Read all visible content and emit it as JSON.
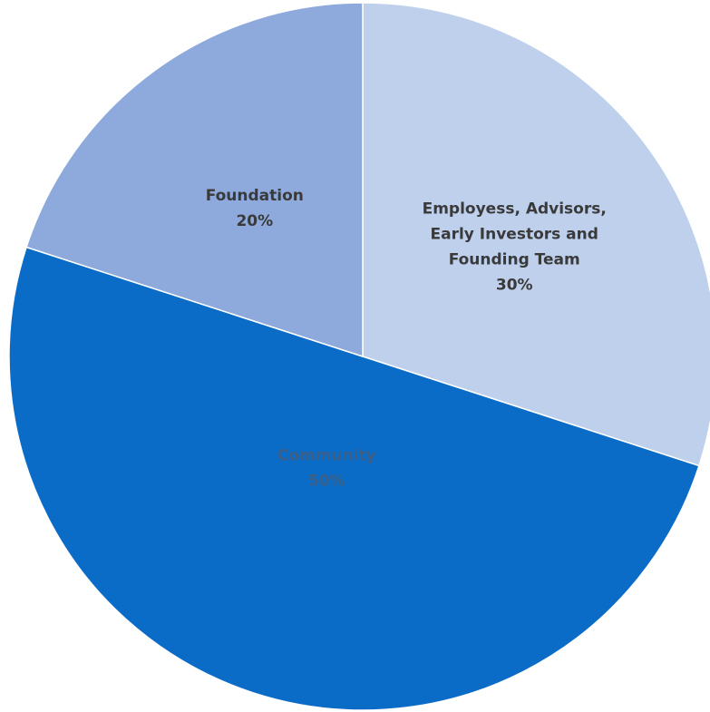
{
  "chart_data": {
    "type": "pie",
    "slices": [
      {
        "label_lines": [
          "Employess, Advisors,",
          "Early Investors and",
          "Founding Team"
        ],
        "value": 30,
        "value_label": "30%",
        "color": "#bed0ec",
        "label_color": "#3a3a3a"
      },
      {
        "label_lines": [
          "Community"
        ],
        "value": 50,
        "value_label": "50%",
        "color": "#0b6cc8",
        "label_color": "#3d5f86"
      },
      {
        "label_lines": [
          "Foundation"
        ],
        "value": 20,
        "value_label": "20%",
        "color": "#8eaadc",
        "label_color": "#3a3a3a"
      }
    ],
    "start_angle_deg": 0,
    "direction": "clockwise"
  }
}
